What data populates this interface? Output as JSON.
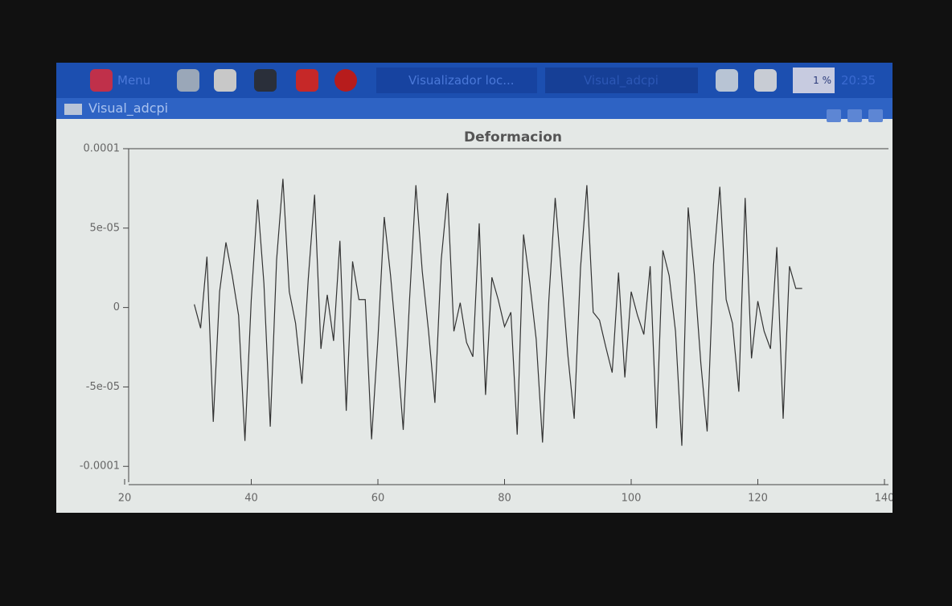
{
  "taskbar": {
    "menu": "Menu",
    "task1": "Visualizador loc...",
    "task2": "Visual_adcpi",
    "cpu": "1 %",
    "clock": "20:35"
  },
  "window": {
    "title": "Visual_adcpi"
  },
  "chart_data": {
    "type": "line",
    "title": "Deformacion",
    "color": "#333333",
    "x": [
      31,
      32,
      33,
      34,
      35,
      36,
      37,
      38,
      39,
      40,
      41,
      42,
      43,
      44,
      45,
      46,
      47,
      48,
      49,
      50,
      51,
      52,
      53,
      54,
      55,
      56,
      57,
      58,
      59,
      60,
      61,
      62,
      63,
      64,
      65,
      66,
      67,
      68,
      69,
      70,
      71,
      72,
      73,
      74,
      75,
      76,
      77,
      78,
      79,
      80,
      81,
      82,
      83,
      84,
      85,
      86,
      87,
      88,
      89,
      90,
      91,
      92,
      93,
      94,
      95,
      96,
      97,
      98,
      99,
      100,
      101,
      102,
      103,
      104,
      105,
      106,
      107,
      108,
      109,
      110,
      111,
      112,
      113,
      114,
      115,
      116,
      117,
      118,
      119,
      120,
      121,
      122,
      123,
      124,
      125,
      126,
      127
    ],
    "values": [
      2e-06,
      -1.3e-05,
      3.2e-05,
      -7.2e-05,
      1e-05,
      4.1e-05,
      2e-05,
      -5e-06,
      -8.4e-05,
      5e-06,
      6.8e-05,
      1.5e-05,
      -7.5e-05,
      3e-05,
      8.1e-05,
      1e-05,
      -1e-05,
      -4.8e-05,
      1.8e-05,
      7.1e-05,
      -2.6e-05,
      8e-06,
      -2.1e-05,
      4.2e-05,
      -6.5e-05,
      2.9e-05,
      5e-06,
      5e-06,
      -8.3e-05,
      -2e-05,
      5.7e-05,
      2e-05,
      -2.5e-05,
      -7.7e-05,
      5e-06,
      7.7e-05,
      2.3e-05,
      -1.5e-05,
      -6e-05,
      3e-05,
      7.2e-05,
      -1.5e-05,
      3e-06,
      -2.2e-05,
      -3.1e-05,
      5.3e-05,
      -5.5e-05,
      1.9e-05,
      5e-06,
      -1.2e-05,
      -3e-06,
      -8e-05,
      4.6e-05,
      1.5e-05,
      -2e-05,
      -8.5e-05,
      5e-06,
      6.9e-05,
      2e-05,
      -3e-05,
      -7e-05,
      2.5e-05,
      7.7e-05,
      -3e-06,
      -8e-06,
      -2.5e-05,
      -4.1e-05,
      2.2e-05,
      -4.4e-05,
      1e-05,
      -5e-06,
      -1.7e-05,
      2.6e-05,
      -7.6e-05,
      3.6e-05,
      2e-05,
      -1.5e-05,
      -8.7e-05,
      6.3e-05,
      2e-05,
      -3.5e-05,
      -7.8e-05,
      2.7e-05,
      7.6e-05,
      5e-06,
      -1e-05,
      -5.3e-05,
      6.9e-05,
      -3.2e-05,
      4e-06,
      -1.5e-05,
      -2.6e-05,
      3.8e-05,
      -7e-05,
      2.6e-05,
      1.2e-05,
      1.2e-05
    ],
    "xlim": [
      20,
      140
    ],
    "xticks": [
      20,
      40,
      60,
      80,
      100,
      120,
      140
    ],
    "ylim": [
      -0.00011,
      0.0001
    ],
    "yticks": [
      -0.0001,
      {
        "value": -5e-05,
        "label": "-5e-05"
      },
      0,
      {
        "value": 5e-05,
        "label": "5e-05"
      },
      0.0001
    ]
  }
}
